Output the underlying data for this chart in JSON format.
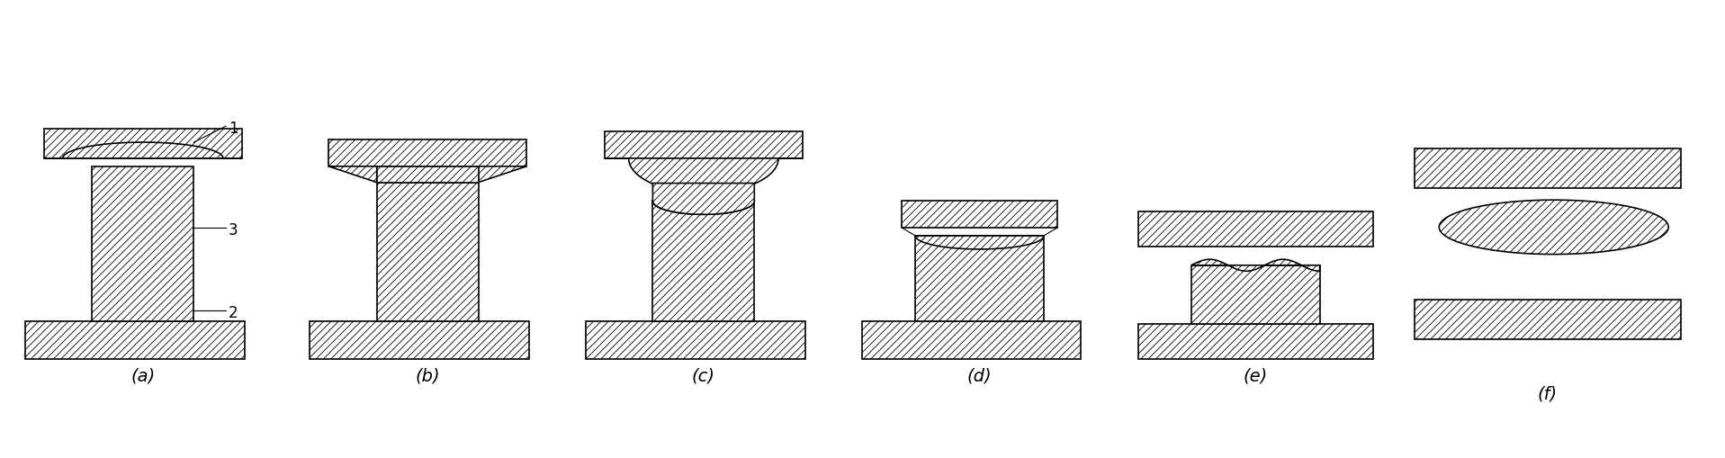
{
  "bg": "#ffffff",
  "ec": "#000000",
  "fc": "#ffffff",
  "hatch": "////",
  "lw": 1.2,
  "fig_w": 19.17,
  "fig_h": 5.1,
  "labels": [
    "(a)",
    "(b)",
    "(c)",
    "(d)",
    "(e)",
    "(f)"
  ],
  "label_fs": 14,
  "annot_fs": 12
}
